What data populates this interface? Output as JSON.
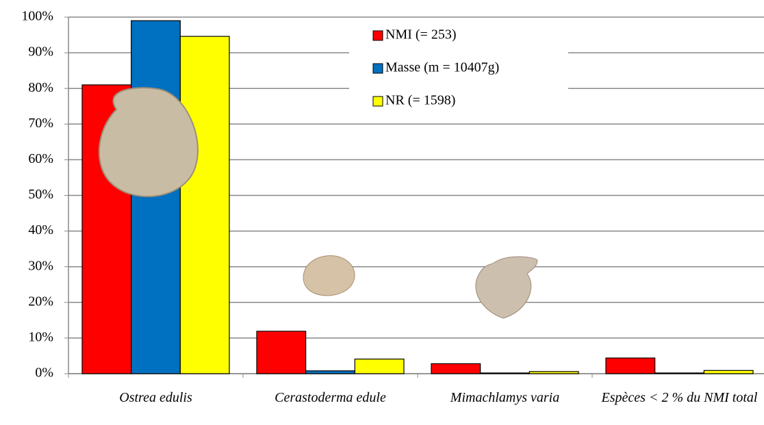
{
  "chart_data": {
    "type": "bar",
    "categories": [
      "Ostrea edulis",
      "Cerastoderma edule",
      "Mimachlamys varia",
      "Espèces < 2 % du NMI total"
    ],
    "series": [
      {
        "name": "NMI (= 253)",
        "color": "#ff0000",
        "values": [
          81,
          11.9,
          2.8,
          4.4
        ]
      },
      {
        "name": "Masse (m = 10407g)",
        "color": "#0070c0",
        "values": [
          99,
          0.8,
          0.2,
          0.2
        ]
      },
      {
        "name": "NR (= 1598)",
        "color": "#ffff00",
        "values": [
          94.6,
          4.1,
          0.6,
          0.9
        ]
      }
    ],
    "ylim": [
      0,
      100
    ],
    "yticks": [
      {
        "value": 0,
        "label": "0%"
      },
      {
        "value": 10,
        "label": "10%"
      },
      {
        "value": 20,
        "label": "20%"
      },
      {
        "value": 30,
        "label": "30%"
      },
      {
        "value": 40,
        "label": "40%"
      },
      {
        "value": 50,
        "label": "50%"
      },
      {
        "value": 60,
        "label": "60%"
      },
      {
        "value": 70,
        "label": "70%"
      },
      {
        "value": 80,
        "label": "80%"
      },
      {
        "value": 90,
        "label": "90%"
      },
      {
        "value": 100,
        "label": "100%"
      }
    ],
    "grid": true,
    "legend": "upper center"
  }
}
